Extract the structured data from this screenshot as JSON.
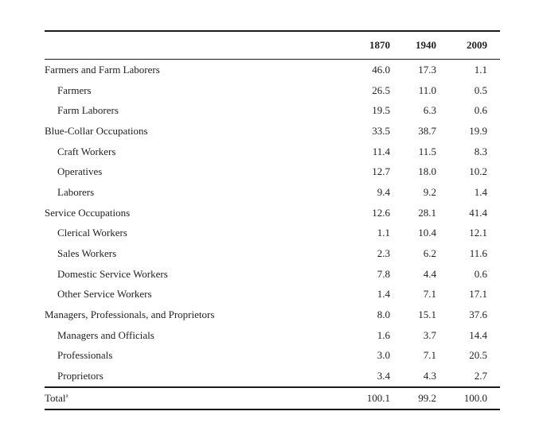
{
  "table": {
    "headers": [
      "",
      "1870",
      "1940",
      "2009"
    ],
    "rows": [
      {
        "label": "Farmers and Farm Laborers",
        "indent": false,
        "values": [
          "46.0",
          "17.3",
          "1.1"
        ]
      },
      {
        "label": "Farmers",
        "indent": true,
        "values": [
          "26.5",
          "11.0",
          "0.5"
        ]
      },
      {
        "label": "Farm Laborers",
        "indent": true,
        "values": [
          "19.5",
          "6.3",
          "0.6"
        ]
      },
      {
        "label": "Blue-Collar Occupations",
        "indent": false,
        "values": [
          "33.5",
          "38.7",
          "19.9"
        ]
      },
      {
        "label": "Craft Workers",
        "indent": true,
        "values": [
          "11.4",
          "11.5",
          "8.3"
        ]
      },
      {
        "label": "Operatives",
        "indent": true,
        "values": [
          "12.7",
          "18.0",
          "10.2"
        ]
      },
      {
        "label": "Laborers",
        "indent": true,
        "values": [
          "9.4",
          "9.2",
          "1.4"
        ]
      },
      {
        "label": "Service Occupations",
        "indent": false,
        "values": [
          "12.6",
          "28.1",
          "41.4"
        ]
      },
      {
        "label": "Clerical Workers",
        "indent": true,
        "values": [
          "1.1",
          "10.4",
          "12.1"
        ]
      },
      {
        "label": "Sales Workers",
        "indent": true,
        "values": [
          "2.3",
          "6.2",
          "11.6"
        ]
      },
      {
        "label": "Domestic Service Workers",
        "indent": true,
        "values": [
          "7.8",
          "4.4",
          "0.6"
        ]
      },
      {
        "label": "Other Service Workers",
        "indent": true,
        "values": [
          "1.4",
          "7.1",
          "17.1"
        ]
      },
      {
        "label": "Managers, Professionals, and Proprietors",
        "indent": false,
        "values": [
          "8.0",
          "15.1",
          "37.6"
        ]
      },
      {
        "label": "Managers and Officials",
        "indent": true,
        "values": [
          "1.6",
          "3.7",
          "14.4"
        ]
      },
      {
        "label": "Professionals",
        "indent": true,
        "values": [
          "3.0",
          "7.1",
          "20.5"
        ]
      },
      {
        "label": "Proprietors",
        "indent": true,
        "values": [
          "3.4",
          "4.3",
          "2.7"
        ]
      }
    ],
    "total": {
      "label": "Total",
      "footnote_mark": "a",
      "values": [
        "100.1",
        "99.2",
        "100.0"
      ]
    }
  }
}
